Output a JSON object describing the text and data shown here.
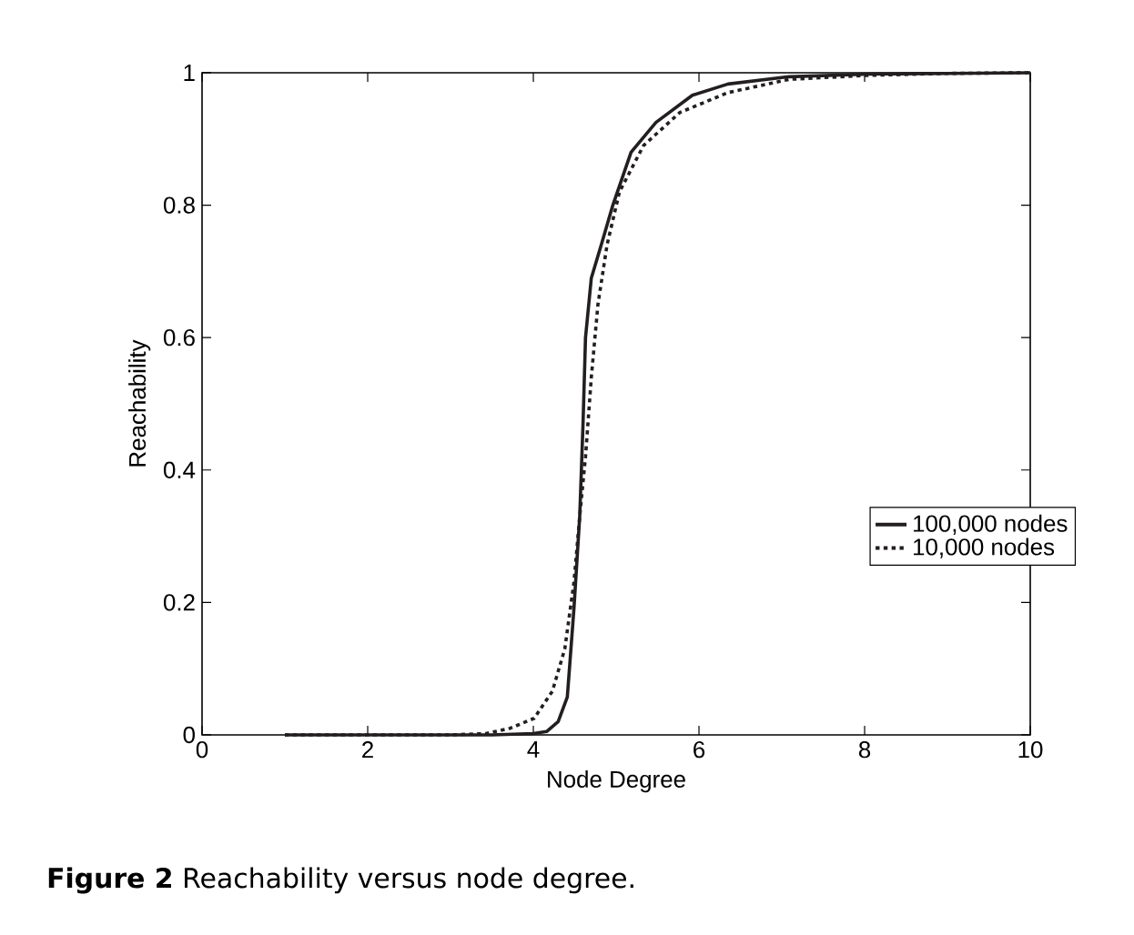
{
  "chart_data": {
    "type": "line",
    "xlabel": "Node Degree",
    "ylabel": "Reachability",
    "annotations": [
      "**Figure 2** Reachability versus node degree."
    ],
    "xlim": [
      0,
      10
    ],
    "ylim": [
      0,
      1
    ],
    "xticks": [
      0,
      2,
      4,
      6,
      8,
      10
    ],
    "yticks": [
      0,
      0.2,
      0.4,
      0.6,
      0.8,
      1
    ],
    "grid": false,
    "legend": "right",
    "marker": "none",
    "series": [
      {
        "name": "100,000 nodes",
        "color": "#231f20",
        "line_style": "solid",
        "x": [
          1,
          2,
          3,
          3.5,
          4.0,
          4.16,
          4.3,
          4.41,
          4.49,
          4.56,
          4.6,
          4.63,
          4.7,
          4.82,
          4.96,
          5.18,
          5.48,
          5.92,
          6.35,
          7.09,
          8.04,
          9,
          10
        ],
        "values": [
          0,
          0,
          0,
          0,
          0.002,
          0.005,
          0.02,
          0.057,
          0.19,
          0.33,
          0.47,
          0.6,
          0.69,
          0.74,
          0.8,
          0.88,
          0.925,
          0.966,
          0.983,
          0.994,
          0.998,
          0.999,
          1
        ]
      },
      {
        "name": "10,000 nodes",
        "color": "#231f20",
        "line_style": "dotted",
        "x": [
          1,
          2,
          3,
          3.43,
          3.72,
          4.01,
          4.23,
          4.38,
          4.49,
          4.56,
          4.63,
          4.7,
          4.78,
          4.89,
          5.04,
          5.33,
          5.77,
          6.35,
          7.09,
          8.04,
          9,
          10
        ],
        "values": [
          0,
          0,
          0,
          0.002,
          0.01,
          0.025,
          0.066,
          0.13,
          0.23,
          0.33,
          0.42,
          0.54,
          0.65,
          0.74,
          0.82,
          0.89,
          0.94,
          0.97,
          0.99,
          0.996,
          0.999,
          1
        ]
      }
    ]
  }
}
